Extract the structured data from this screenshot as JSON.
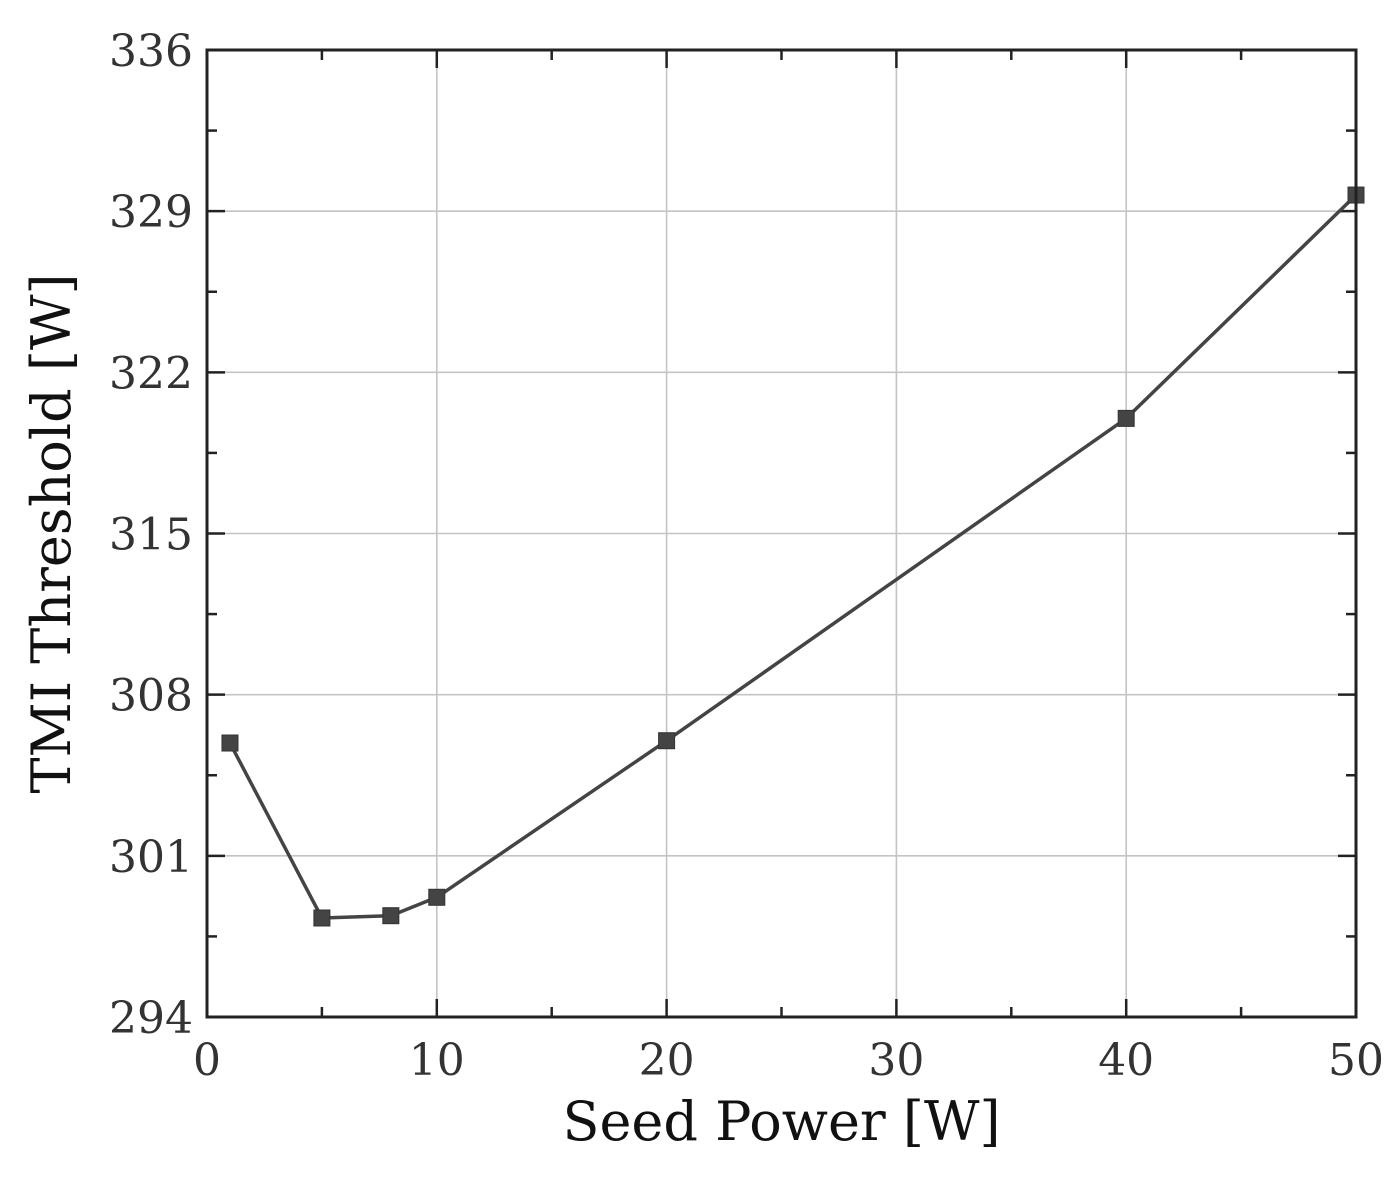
{
  "chart_data": {
    "type": "line",
    "title": "",
    "xlabel": "Seed Power [W]",
    "ylabel": "TMI Threshold [W]",
    "xlim": [
      0,
      50
    ],
    "ylim": [
      294,
      336
    ],
    "xticks": [
      0,
      10,
      20,
      30,
      40,
      50
    ],
    "xtick_labels": [
      "0",
      "10",
      "20",
      "30",
      "40",
      "50"
    ],
    "yticks": [
      294,
      301,
      308,
      315,
      322,
      329,
      336
    ],
    "ytick_labels": [
      "294",
      "301",
      "308",
      "315",
      "322",
      "329",
      "336"
    ],
    "grid": true,
    "series": [
      {
        "name": "TMI Threshold",
        "color": "#444444",
        "marker": "square",
        "x": [
          1,
          5,
          8,
          10,
          20,
          40,
          50
        ],
        "y": [
          305.9,
          298.3,
          298.4,
          299.2,
          306.0,
          320.0,
          329.7
        ]
      }
    ]
  }
}
